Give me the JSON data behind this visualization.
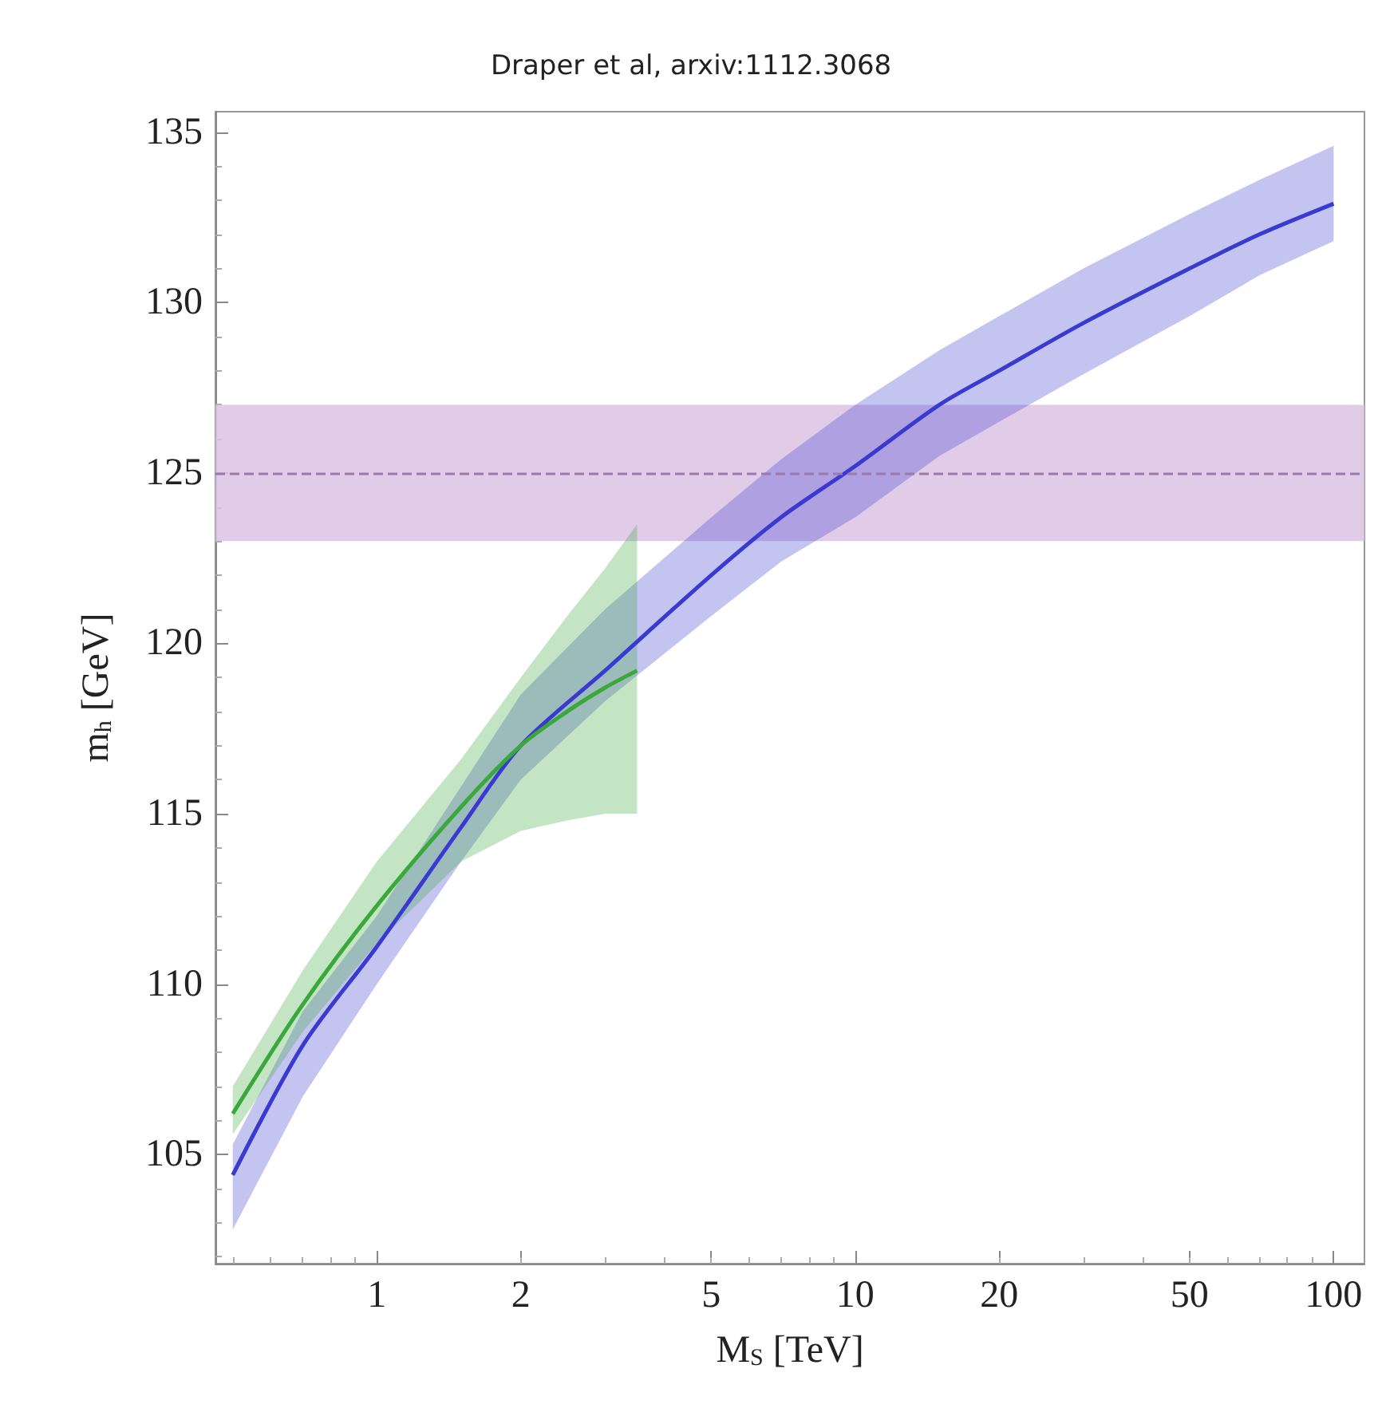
{
  "chart_data": {
    "type": "line",
    "title": "Draper et al, arxiv:1112.3068",
    "xlabel": "M$_{S}$ [TeV]",
    "ylabel": "m$_{h}$ [GeV]",
    "log": "x",
    "marker": "none",
    "line_style": "solid",
    "xlim": [
      0.46,
      116
    ],
    "xticks": [
      1,
      2,
      5,
      10,
      20,
      50,
      100
    ],
    "ylim": [
      101.8,
      135.6
    ],
    "yticks": [
      105,
      110,
      115,
      120,
      125,
      130,
      135
    ],
    "series": [
      {
        "color": "#3a3ad0",
        "x": [
          0.5,
          0.7,
          1,
          1.5,
          2,
          3,
          5,
          7,
          10,
          15,
          20,
          30,
          50,
          70,
          100
        ],
        "values": [
          104.4,
          108.2,
          111.1,
          114.6,
          117.0,
          119.2,
          122.0,
          123.7,
          125.2,
          127.0,
          128.0,
          129.4,
          131.0,
          132.0,
          132.9
        ],
        "lower": [
          102.8,
          106.7,
          110.0,
          113.6,
          116.0,
          118.3,
          120.8,
          122.4,
          123.7,
          125.5,
          126.5,
          127.9,
          129.6,
          130.8,
          131.8
        ],
        "upper": [
          105.3,
          109.2,
          112.0,
          115.8,
          118.5,
          121.0,
          123.7,
          125.4,
          127.0,
          128.6,
          129.6,
          131.0,
          132.6,
          133.6,
          134.6
        ]
      },
      {
        "color": "#3aa83a",
        "x": [
          0.5,
          0.7,
          1,
          1.5,
          2,
          2.5,
          3,
          3.5
        ],
        "values": [
          106.2,
          109.4,
          112.3,
          115.2,
          117.0,
          118.0,
          118.7,
          119.2
        ],
        "lower": [
          105.6,
          108.6,
          111.2,
          113.6,
          114.5,
          114.8,
          115.0,
          115.0
        ],
        "upper": [
          107.0,
          110.4,
          113.6,
          116.6,
          119.0,
          120.8,
          122.2,
          123.5
        ]
      }
    ],
    "ref_lines": [
      {
        "axis": "y",
        "value": 125,
        "color": "#9a7aa8",
        "line_style": "dashed"
      }
    ],
    "bands": [
      {
        "axis": "y",
        "from": 123,
        "to": 127,
        "color": "#dcc3e4"
      }
    ]
  }
}
